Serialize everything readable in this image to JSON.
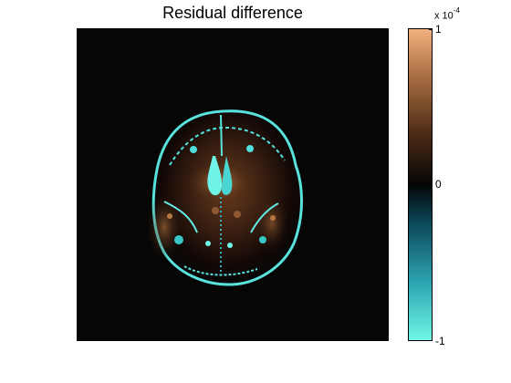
{
  "figure": {
    "title": "Residual difference"
  },
  "colorbar": {
    "multiplier_prefix": "x 10",
    "multiplier_exponent": "-4",
    "ticks": [
      "1",
      "0",
      "-1"
    ],
    "colormap": [
      "#6ff6e6",
      "#2ea7b3",
      "#0b4658",
      "#050505",
      "#4b2a16",
      "#a46b3f",
      "#f3b07f"
    ]
  }
}
